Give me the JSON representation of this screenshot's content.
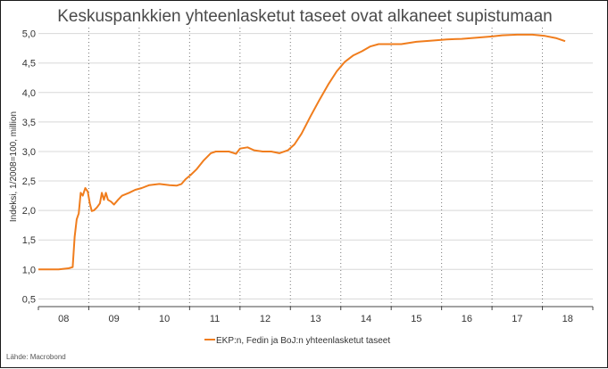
{
  "chart_data": {
    "type": "line",
    "title": "Keskuspankkien yhteenlasketut taseet ovat alkaneet supistumaan",
    "ylabel": "Indeksi, 1/2008=100, million",
    "xlabel": "",
    "ylim": [
      0.37,
      5.1
    ],
    "xlim": [
      2008.0,
      2019.0
    ],
    "yticks": [
      "0,5",
      "1,0",
      "1,5",
      "2,0",
      "2,5",
      "3,0",
      "3,5",
      "4,0",
      "4,5",
      "5,0"
    ],
    "ytick_values": [
      0.5,
      1.0,
      1.5,
      2.0,
      2.5,
      3.0,
      3.5,
      4.0,
      4.5,
      5.0
    ],
    "xticks": [
      "08",
      "09",
      "10",
      "11",
      "12",
      "13",
      "14",
      "15",
      "16",
      "17",
      "18"
    ],
    "xtick_values": [
      2008.5,
      2009.5,
      2010.5,
      2011.5,
      2012.5,
      2013.5,
      2014.5,
      2015.5,
      2016.5,
      2017.5,
      2018.5
    ],
    "grid": true,
    "legend_position": "bottom",
    "series": [
      {
        "name": "EKP:n, Fedin ja BoJ:n yhteenlasketut taseet",
        "color": "#f07d1d",
        "points": [
          [
            2008.0,
            1.0
          ],
          [
            2008.2,
            1.0
          ],
          [
            2008.4,
            1.0
          ],
          [
            2008.6,
            1.02
          ],
          [
            2008.68,
            1.04
          ],
          [
            2008.72,
            1.55
          ],
          [
            2008.76,
            1.85
          ],
          [
            2008.8,
            1.95
          ],
          [
            2008.84,
            2.3
          ],
          [
            2008.88,
            2.25
          ],
          [
            2008.93,
            2.38
          ],
          [
            2008.98,
            2.32
          ],
          [
            2009.02,
            2.12
          ],
          [
            2009.06,
            1.99
          ],
          [
            2009.1,
            2.0
          ],
          [
            2009.16,
            2.05
          ],
          [
            2009.22,
            2.12
          ],
          [
            2009.26,
            2.3
          ],
          [
            2009.3,
            2.18
          ],
          [
            2009.34,
            2.3
          ],
          [
            2009.38,
            2.18
          ],
          [
            2009.44,
            2.15
          ],
          [
            2009.5,
            2.1
          ],
          [
            2009.58,
            2.18
          ],
          [
            2009.66,
            2.25
          ],
          [
            2009.8,
            2.3
          ],
          [
            2009.92,
            2.35
          ],
          [
            2010.05,
            2.38
          ],
          [
            2010.2,
            2.43
          ],
          [
            2010.4,
            2.45
          ],
          [
            2010.6,
            2.43
          ],
          [
            2010.74,
            2.42
          ],
          [
            2010.84,
            2.45
          ],
          [
            2010.92,
            2.53
          ],
          [
            2011.02,
            2.6
          ],
          [
            2011.14,
            2.7
          ],
          [
            2011.28,
            2.85
          ],
          [
            2011.42,
            2.97
          ],
          [
            2011.52,
            3.0
          ],
          [
            2011.65,
            3.0
          ],
          [
            2011.78,
            3.0
          ],
          [
            2011.92,
            2.96
          ],
          [
            2012.0,
            3.05
          ],
          [
            2012.15,
            3.07
          ],
          [
            2012.28,
            3.02
          ],
          [
            2012.45,
            3.0
          ],
          [
            2012.62,
            3.0
          ],
          [
            2012.78,
            2.97
          ],
          [
            2012.95,
            3.02
          ],
          [
            2013.08,
            3.12
          ],
          [
            2013.22,
            3.3
          ],
          [
            2013.4,
            3.6
          ],
          [
            2013.58,
            3.88
          ],
          [
            2013.76,
            4.15
          ],
          [
            2013.92,
            4.36
          ],
          [
            2014.08,
            4.52
          ],
          [
            2014.25,
            4.63
          ],
          [
            2014.42,
            4.7
          ],
          [
            2014.58,
            4.78
          ],
          [
            2014.75,
            4.82
          ],
          [
            2014.92,
            4.82
          ],
          [
            2015.2,
            4.82
          ],
          [
            2015.5,
            4.86
          ],
          [
            2015.8,
            4.88
          ],
          [
            2016.1,
            4.9
          ],
          [
            2016.4,
            4.91
          ],
          [
            2016.7,
            4.93
          ],
          [
            2017.0,
            4.95
          ],
          [
            2017.2,
            4.97
          ],
          [
            2017.5,
            4.98
          ],
          [
            2017.8,
            4.98
          ],
          [
            2018.05,
            4.96
          ],
          [
            2018.28,
            4.92
          ],
          [
            2018.45,
            4.87
          ]
        ]
      }
    ],
    "annotations": []
  },
  "footer": {
    "source": "Lähde: Macrobond"
  }
}
